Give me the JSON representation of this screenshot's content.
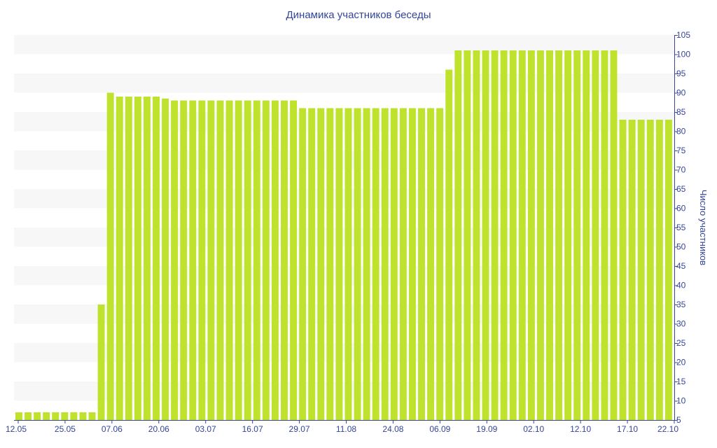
{
  "chart_data": {
    "type": "bar",
    "title": "Динамика участников беседы",
    "xlabel": "",
    "ylabel": "Число участников",
    "ylim": [
      5,
      105
    ],
    "y_ticks": [
      5,
      10,
      15,
      20,
      25,
      30,
      35,
      40,
      45,
      50,
      55,
      60,
      65,
      70,
      75,
      80,
      85,
      90,
      95,
      100,
      105
    ],
    "y_axis_position": "right",
    "x_tick_labels": [
      "12.05",
      "25.05",
      "07.06",
      "20.06",
      "03.07",
      "16.07",
      "29.07",
      "11.08",
      "24.08",
      "06.09",
      "19.09",
      "02.10",
      "12.10",
      "17.10",
      "22.10"
    ],
    "grid": "alternating horizontal bands",
    "bar_color": "#bfe22d",
    "values": [
      7,
      7,
      7,
      7,
      7,
      7,
      7,
      7,
      7,
      35,
      90,
      89,
      89,
      89,
      89,
      89,
      88.5,
      88,
      88,
      88,
      88,
      88,
      88,
      88,
      88,
      88,
      88,
      88,
      88,
      88,
      88,
      86,
      86,
      86,
      86,
      86,
      86,
      86,
      86,
      86,
      86,
      86,
      86,
      86,
      86,
      86,
      86,
      96,
      101,
      101,
      101,
      101,
      101,
      101,
      101,
      101,
      101,
      101,
      101,
      101,
      101,
      101,
      101,
      101,
      101,
      101,
      83,
      83,
      83,
      83,
      83,
      83
    ]
  }
}
